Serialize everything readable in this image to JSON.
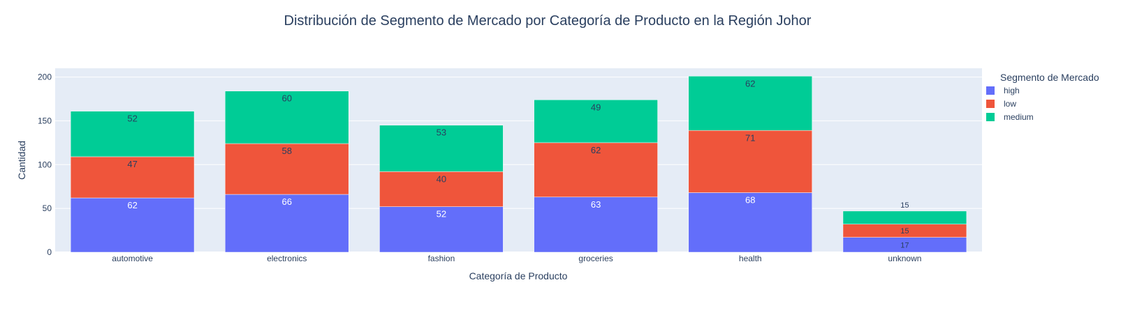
{
  "chart_data": {
    "type": "bar",
    "stacked": true,
    "title": "Distribución de Segmento de Mercado por Categoría de Producto en la Región Johor",
    "xlabel": "Categoría de Producto",
    "ylabel": "Cantidad",
    "ylim": [
      0,
      210
    ],
    "yticks": [
      0,
      50,
      100,
      150,
      200
    ],
    "grid": true,
    "legend_title": "Segmento de Mercado",
    "legend_position": "right",
    "categories": [
      "automotive",
      "electronics",
      "fashion",
      "groceries",
      "health",
      "unknown"
    ],
    "series": [
      {
        "name": "high",
        "color": "#636efa",
        "values": [
          62,
          66,
          52,
          63,
          68,
          17
        ]
      },
      {
        "name": "low",
        "color": "#ef553b",
        "values": [
          47,
          58,
          40,
          62,
          71,
          15
        ]
      },
      {
        "name": "medium",
        "color": "#00cc96",
        "values": [
          52,
          60,
          53,
          49,
          62,
          15
        ]
      }
    ],
    "plot_background": "#e5ecf6",
    "text_color": "#2a3f5f"
  }
}
